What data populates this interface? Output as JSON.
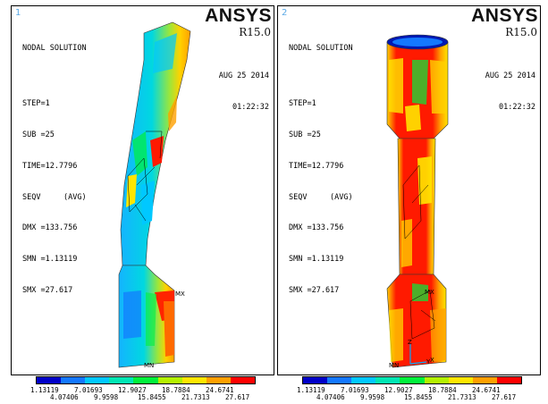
{
  "panels": [
    {
      "number": "1",
      "title": "NODAL SOLUTION",
      "step": "STEP=1",
      "sub": "SUB =25",
      "time": "TIME=12.7796",
      "seqv": "SEQV     (AVG)",
      "dmx": "DMX =133.756",
      "smn": "SMN =1.13119",
      "smx": "SMX =27.617",
      "brand": "ANSYS",
      "version": "R15.0",
      "date": "AUG 25 2014",
      "clock": "01:22:32",
      "mx_label": "MX",
      "mn_label": "MN"
    },
    {
      "number": "2",
      "title": "NODAL SOLUTION",
      "step": "STEP=1",
      "sub": "SUB =25",
      "time": "TIME=12.7796",
      "seqv": "SEQV     (AVG)",
      "dmx": "DMX =133.756",
      "smn": "SMN =1.13119",
      "smx": "SMX =27.617",
      "brand": "ANSYS",
      "version": "R15.0",
      "date": "AUG 25 2014",
      "clock": "01:22:32",
      "mx_label": "MX",
      "mn_label": "MN",
      "axis_y": "Y",
      "axis_z": "Z",
      "axis_x": "X"
    }
  ],
  "legend": {
    "colors": [
      "#0000c8",
      "#1478ff",
      "#00c8ff",
      "#00e6b4",
      "#00f03c",
      "#b4f000",
      "#ffe600",
      "#ffa000",
      "#ff0000"
    ],
    "top_values": [
      "1.13119",
      "7.01693",
      "12.9027",
      "18.7884",
      "24.6741"
    ],
    "bottom_values": [
      "4.07406",
      "9.9598",
      "15.8455",
      "21.7313",
      "27.617"
    ]
  }
}
